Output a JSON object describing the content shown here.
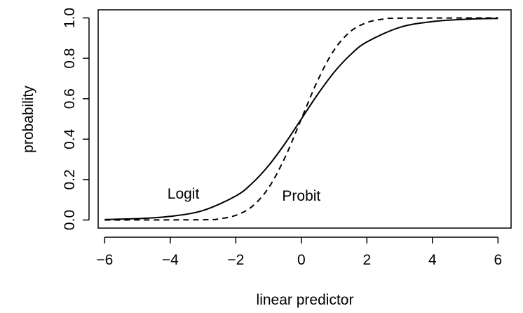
{
  "chart_data": {
    "type": "line",
    "xlabel": "linear predictor",
    "ylabel": "probability",
    "xlim": [
      -6.2,
      6.4
    ],
    "ylim": [
      -0.04,
      1.04
    ],
    "x_ticks": [
      -6,
      -4,
      -2,
      0,
      2,
      4,
      6
    ],
    "x_tick_labels": [
      "−6",
      "−4",
      "−2",
      "0",
      "2",
      "4",
      "6"
    ],
    "y_ticks": [
      0.0,
      0.2,
      0.4,
      0.6,
      0.8,
      1.0
    ],
    "y_tick_labels": [
      "0.0",
      "0.2",
      "0.4",
      "0.6",
      "0.8",
      "1.0"
    ],
    "series": [
      {
        "name": "Logit",
        "line_style": "solid",
        "color": "#000000",
        "x": [
          -6,
          -5,
          -4,
          -3,
          -2,
          -1.5,
          -1,
          -0.5,
          0,
          0.5,
          1,
          1.5,
          2,
          3,
          4,
          5,
          6
        ],
        "y": [
          0.0025,
          0.0067,
          0.018,
          0.047,
          0.119,
          0.182,
          0.269,
          0.378,
          0.5,
          0.622,
          0.731,
          0.818,
          0.881,
          0.953,
          0.982,
          0.993,
          0.9975
        ]
      },
      {
        "name": "Probit",
        "line_style": "dashed",
        "color": "#000000",
        "x": [
          -6,
          -3,
          -2.5,
          -2,
          -1.5,
          -1,
          -0.5,
          0,
          0.5,
          1,
          1.5,
          2,
          2.5,
          3,
          6
        ],
        "y": [
          0.0,
          0.0013,
          0.0062,
          0.023,
          0.067,
          0.159,
          0.309,
          0.5,
          0.691,
          0.841,
          0.933,
          0.977,
          0.994,
          0.9987,
          1.0
        ]
      }
    ],
    "annotations": [
      {
        "text": "Logit",
        "x": -3.6,
        "y": 0.105
      },
      {
        "text": "Probit",
        "x": 0.0,
        "y": 0.095
      }
    ],
    "grid": false,
    "legend": "none"
  }
}
